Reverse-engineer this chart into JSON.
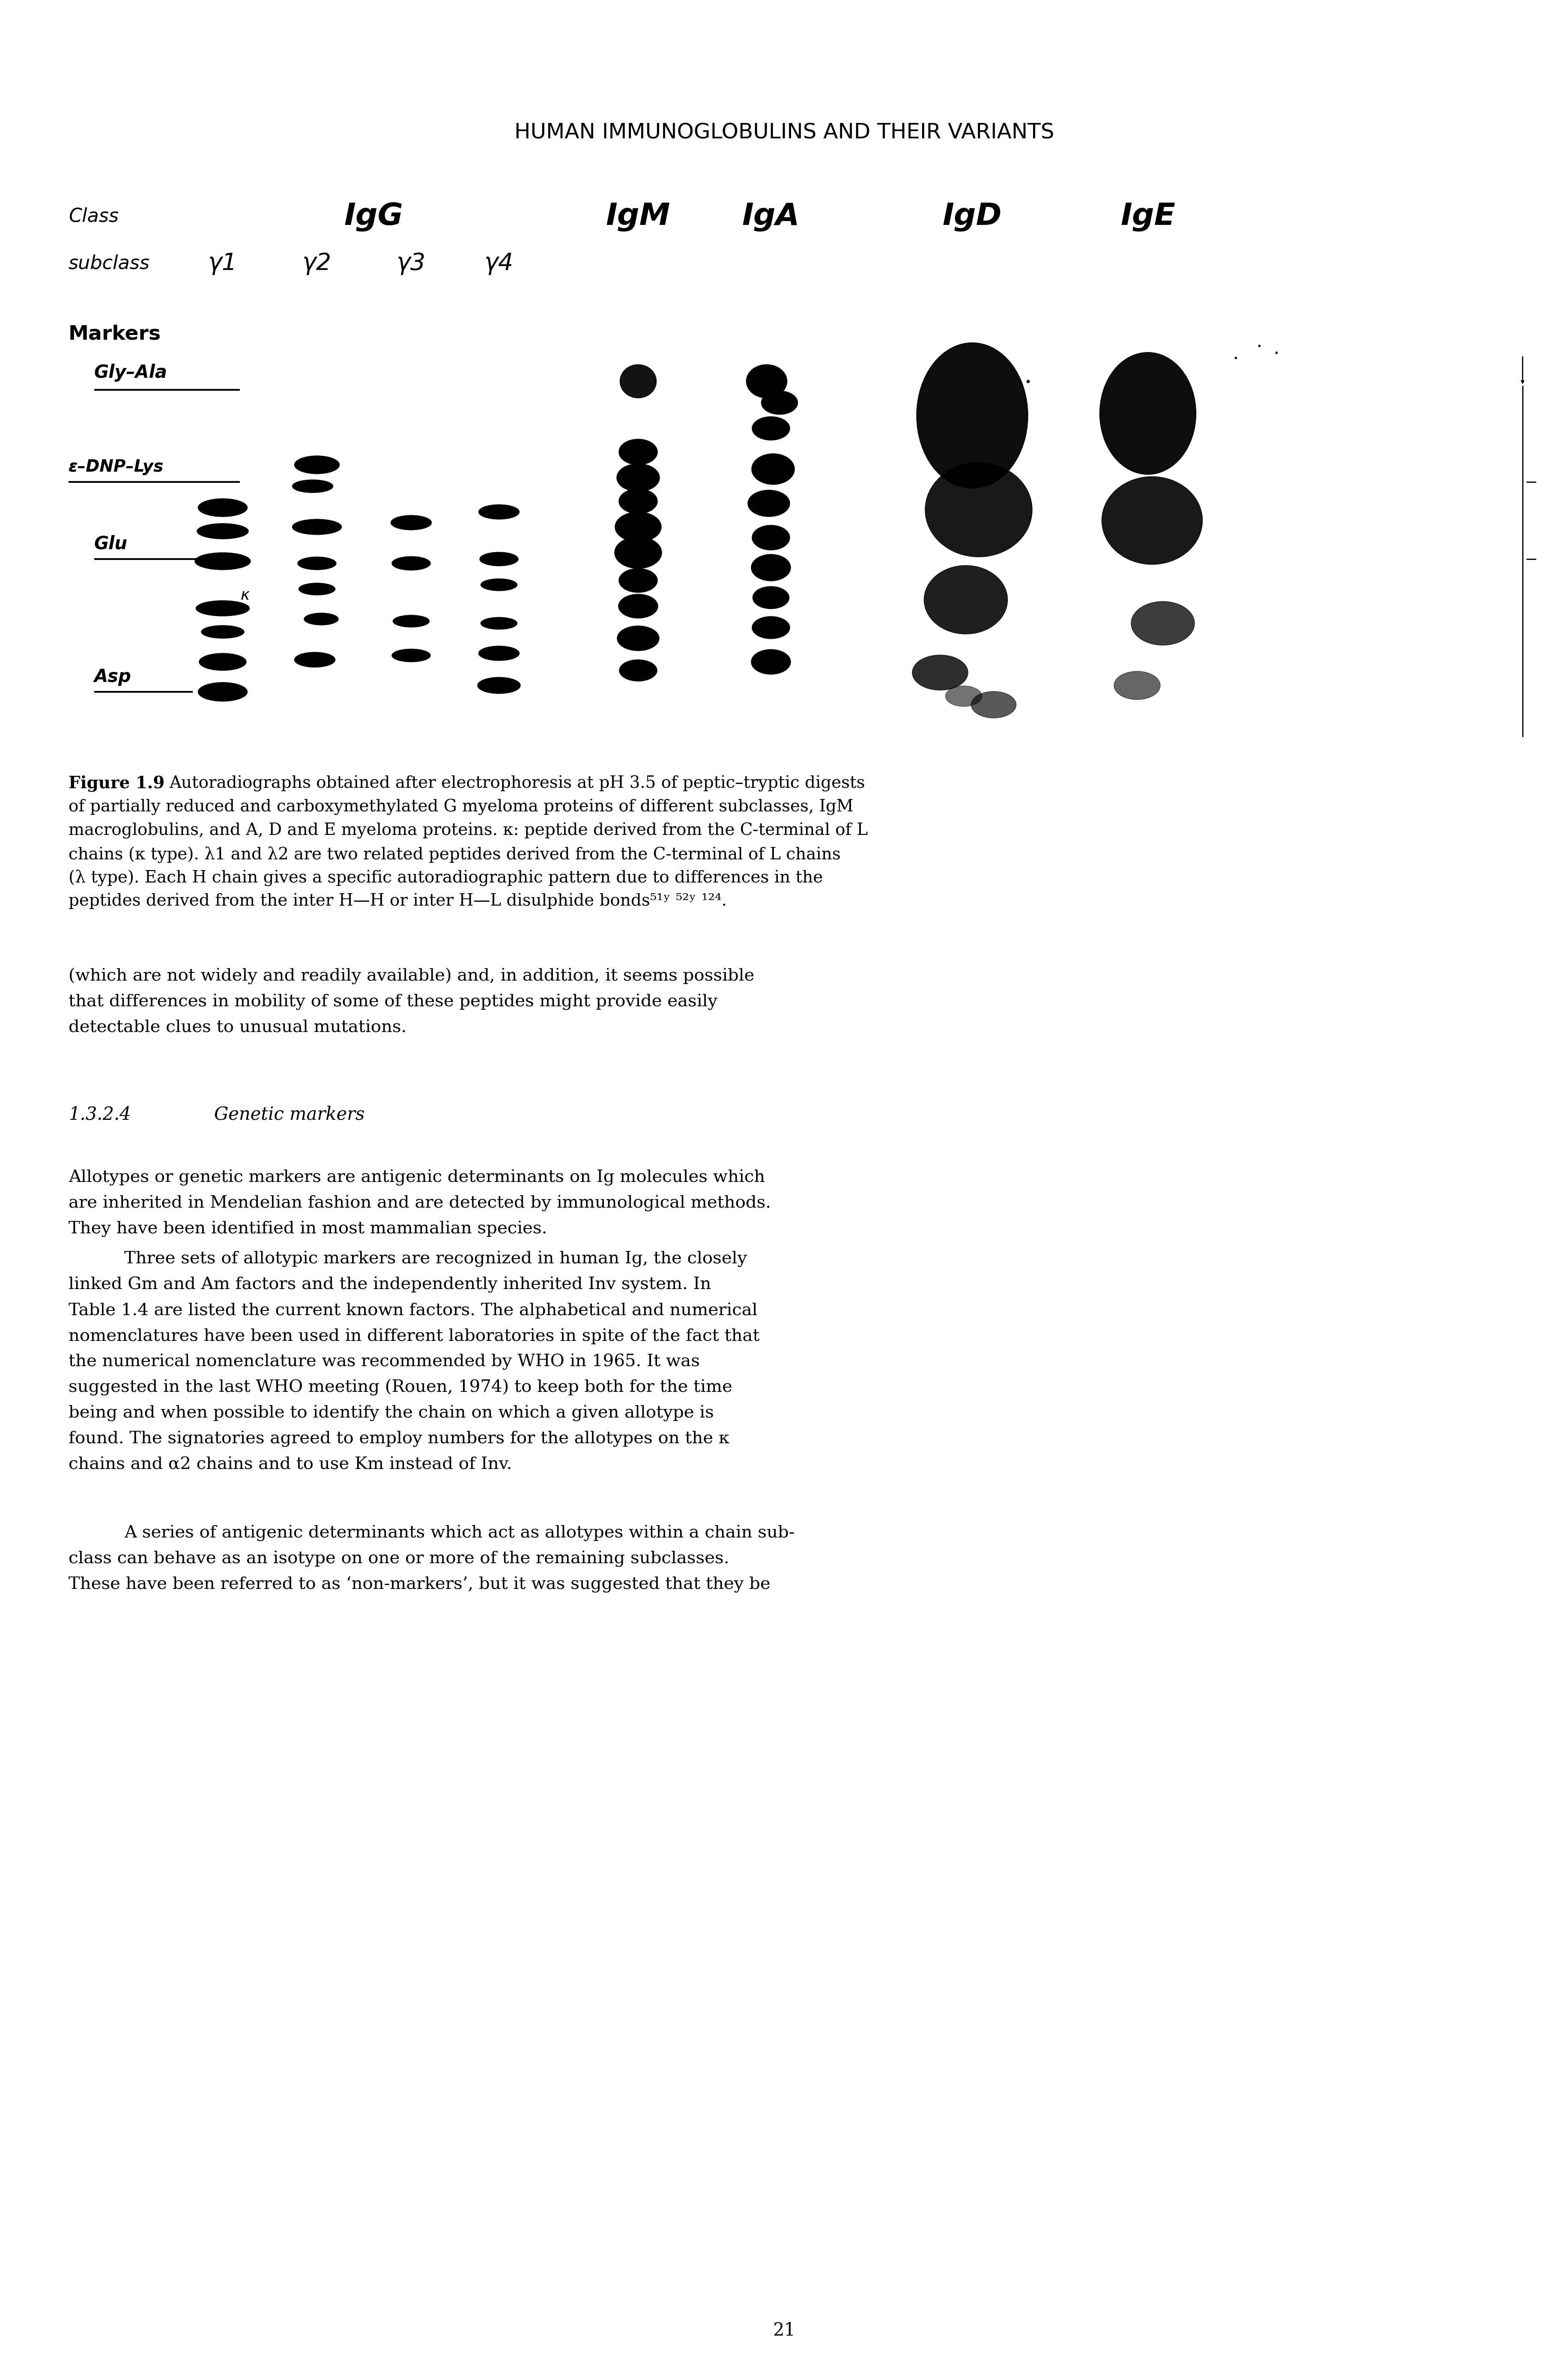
{
  "page_title": "HUMAN IMMUNOGLOBULINS AND THEIR VARIANTS",
  "page_number": "21",
  "bg_color": "#ffffff",
  "text_color": "#000000",
  "label_class": "Class",
  "label_subclass": "subclass",
  "label_markers": "Markers",
  "label_gly_ala": "Gly–Ala",
  "label_dnp": "ε–DNP–Lys",
  "label_glu": "Glu",
  "label_kappa": "κ",
  "label_asp": "Asp",
  "caption_bold": "Figure 1.9",
  "caption_rest_lines": [
    "Autoradiographs obtained after electrophoresis at pH 3.5 of peptic–tryptic digests",
    "of partially reduced and carboxymethylated G myeloma proteins of different subclasses, IgM",
    "macroglobulins, and A, D and E myeloma proteins. κ: peptide derived from the C-terminal of L",
    "chains (κ type). λ1 and λ2 are two related peptides derived from the C-terminal of L chains",
    "(λ type). Each H chain gives a specific autoradiographic pattern due to differences in the",
    "peptides derived from the inter H—H or inter H—L disulphide bonds⁵¹ʸ ⁵²ʸ ¹²⁴."
  ],
  "para1_lines": [
    "(which are not widely and readily available) and, in addition, it seems possible",
    "that differences in mobility of some of these peptides might provide easily",
    "detectable clues to unusual mutations."
  ],
  "section_id": "1.3.2.4",
  "section_title": "Genetic markers",
  "para2_lines": [
    "Allotypes or genetic markers are antigenic determinants on Ig molecules which",
    "are inherited in Mendelian fashion and are detected by immunological methods.",
    "They have been identified in most mammalian species."
  ],
  "para3_lines": [
    "Three sets of allotypic markers are recognized in human Ig, the closely",
    "linked Gm and Am factors and the independently inherited Inv system. In",
    "Table 1.4 are listed the current known factors. The alphabetical and numerical",
    "nomenclatures have been used in different laboratories in spite of the fact that",
    "the numerical nomenclature was recommended by WHO in 1965. It was",
    "suggested in the last WHO meeting (Rouen, 1974) to keep both for the time",
    "being and when possible to identify the chain on which a given allotype is",
    "found. The signatories agreed to employ numbers for the allotypes on the κ",
    "chains and α2 chains and to use Km instead of Inv."
  ],
  "para4_lines": [
    "A series of antigenic determinants which act as allotypes within a chain sub-",
    "class can behave as an isotype on one or more of the remaining subclasses.",
    "These have been referred to as ‘non-markers’, but it was suggested that they be"
  ]
}
